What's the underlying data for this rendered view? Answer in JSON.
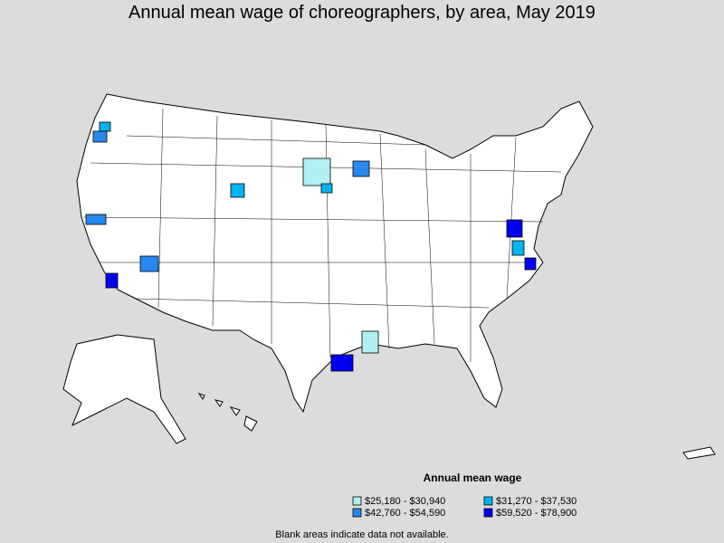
{
  "title": "Annual mean wage of choreographers, by area, May 2019",
  "legend": {
    "title": "Annual mean wage",
    "items": [
      {
        "label": "$25,180 - $30,940",
        "color": "#b0f0f0"
      },
      {
        "label": "$31,270 - $37,530",
        "color": "#00b4f0"
      },
      {
        "label": "$42,760 - $54,590",
        "color": "#2888f0"
      },
      {
        "label": "$59,520 - $78,900",
        "color": "#0000f0"
      }
    ]
  },
  "note": "Blank areas indicate data not available."
}
